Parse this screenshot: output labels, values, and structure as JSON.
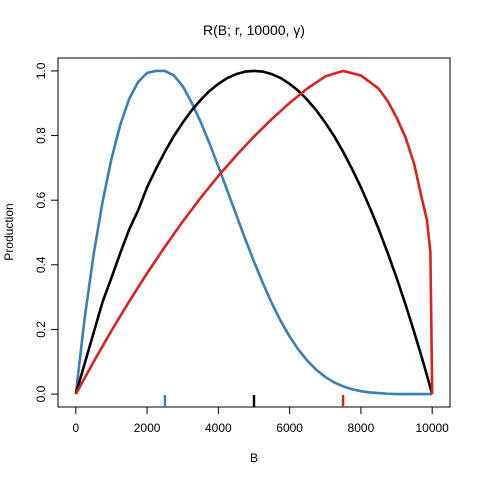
{
  "chart_data": {
    "type": "line",
    "title": "R(B; r, 10000, γ)",
    "xlabel": "B",
    "ylabel": "Production",
    "xlim": [
      -500,
      10500
    ],
    "ylim": [
      -0.04,
      1.04
    ],
    "xticks": [
      0,
      2000,
      4000,
      6000,
      8000,
      10000
    ],
    "xtick_labels": [
      "0",
      "2000",
      "4000",
      "6000",
      "8000",
      "10000"
    ],
    "yticks": [
      0.0,
      0.2,
      0.4,
      0.6,
      0.8,
      1.0
    ],
    "ytick_labels": [
      "0.0",
      "0.2",
      "0.4",
      "0.6",
      "0.8",
      "1.0"
    ],
    "grid": false,
    "legend": "none",
    "series": [
      {
        "color": "#3A7FB8",
        "peak_B": 2500,
        "x": [
          0,
          250,
          500,
          750,
          1000,
          1250,
          1500,
          1750,
          2000,
          2250,
          2500,
          2750,
          3000,
          3250,
          3500,
          3750,
          4000,
          4250,
          4500,
          4750,
          5000,
          5250,
          5500,
          5750,
          6000,
          6250,
          6500,
          6750,
          7000,
          7250,
          7500,
          7750,
          8000,
          8250,
          8500,
          8750,
          9000,
          9250,
          9500,
          9750,
          10000
        ],
        "y": [
          0.0,
          0.237,
          0.432,
          0.595,
          0.728,
          0.834,
          0.914,
          0.966,
          0.994,
          1.0,
          1.0,
          0.986,
          0.953,
          0.902,
          0.843,
          0.776,
          0.704,
          0.63,
          0.555,
          0.481,
          0.41,
          0.343,
          0.281,
          0.226,
          0.178,
          0.137,
          0.103,
          0.075,
          0.053,
          0.036,
          0.024,
          0.015,
          0.009,
          0.005,
          0.003,
          0.001,
          0.0,
          0.0,
          0.0,
          0.0,
          0.0
        ]
      },
      {
        "color": "#000000",
        "peak_B": 5000,
        "x": [
          0,
          250,
          500,
          750,
          1000,
          1250,
          1500,
          1750,
          2000,
          2250,
          2500,
          2750,
          3000,
          3250,
          3500,
          3750,
          4000,
          4250,
          4500,
          4750,
          5000,
          5250,
          5500,
          5750,
          6000,
          6250,
          6500,
          6750,
          7000,
          7250,
          7500,
          7750,
          8000,
          8250,
          8500,
          8750,
          9000,
          9250,
          9500,
          9750,
          10000
        ],
        "y": [
          0.0,
          0.095,
          0.19,
          0.285,
          0.36,
          0.437,
          0.51,
          0.569,
          0.64,
          0.697,
          0.75,
          0.798,
          0.84,
          0.878,
          0.91,
          0.938,
          0.96,
          0.978,
          0.99,
          0.998,
          1.0,
          0.998,
          0.99,
          0.978,
          0.96,
          0.938,
          0.91,
          0.878,
          0.84,
          0.798,
          0.75,
          0.697,
          0.64,
          0.577,
          0.51,
          0.437,
          0.36,
          0.278,
          0.19,
          0.098,
          0.0
        ]
      },
      {
        "color": "#E02020",
        "peak_B": 7500,
        "x": [
          0,
          500,
          1000,
          1500,
          2000,
          2500,
          3000,
          3500,
          4000,
          4500,
          5000,
          5500,
          6000,
          6500,
          7000,
          7500,
          8000,
          8500,
          8750,
          9000,
          9250,
          9500,
          9700,
          9850,
          9950,
          10000
        ],
        "y": [
          0.0,
          0.1,
          0.196,
          0.287,
          0.374,
          0.456,
          0.534,
          0.607,
          0.675,
          0.738,
          0.797,
          0.851,
          0.901,
          0.946,
          0.983,
          1.0,
          0.986,
          0.945,
          0.907,
          0.856,
          0.795,
          0.71,
          0.61,
          0.54,
          0.44,
          0.0
        ]
      }
    ]
  }
}
